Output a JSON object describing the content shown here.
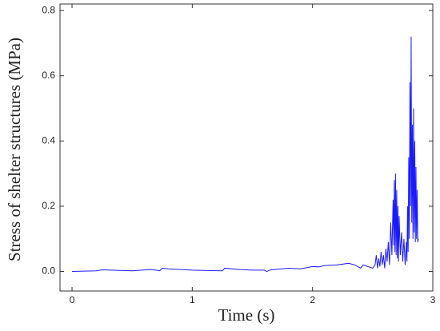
{
  "chart_data": {
    "type": "line",
    "x_label": "Time (s)",
    "y_label": "Stress of shelter structures (MPa)",
    "color": "#1a1aff",
    "xlim": [
      -0.1,
      3.0
    ],
    "ylim": [
      -0.06,
      0.82
    ],
    "xticks": [
      0,
      1,
      2,
      3
    ],
    "yticks": [
      {
        "value": 0,
        "label": "0.0"
      },
      {
        "value": 0.2,
        "label": "0.2"
      },
      {
        "value": 0.4,
        "label": "0.4"
      },
      {
        "value": 0.6,
        "label": "0.6"
      },
      {
        "value": 0.8,
        "label": "0.8"
      }
    ],
    "x": [
      0,
      0.2,
      0.25,
      0.4,
      0.5,
      0.65,
      0.7,
      0.73,
      0.75,
      0.8,
      1.0,
      1.25,
      1.27,
      1.4,
      1.5,
      1.6,
      1.62,
      1.65,
      1.8,
      1.9,
      2.0,
      2.05,
      2.1,
      2.2,
      2.3,
      2.35,
      2.4,
      2.42,
      2.5,
      2.52,
      2.53,
      2.54,
      2.55,
      2.56,
      2.57,
      2.58,
      2.59,
      2.6,
      2.61,
      2.62,
      2.63,
      2.64,
      2.65,
      2.66,
      2.67,
      2.675,
      2.68,
      2.685,
      2.69,
      2.695,
      2.7,
      2.705,
      2.71,
      2.715,
      2.72,
      2.73,
      2.74,
      2.75,
      2.76,
      2.77,
      2.78,
      2.785,
      2.79,
      2.795,
      2.8,
      2.805,
      2.81,
      2.815,
      2.82,
      2.825,
      2.83,
      2.835,
      2.84,
      2.845,
      2.85,
      2.855,
      2.86,
      2.865,
      2.87,
      2.875,
      2.88
    ],
    "values": [
      0,
      0.002,
      0.005,
      0.003,
      0.002,
      0.006,
      0.004,
      0.002,
      0.01,
      0.008,
      0.004,
      0.002,
      0.01,
      0.006,
      0.004,
      0.004,
      0.0,
      0.005,
      0.01,
      0.008,
      0.015,
      0.014,
      0.018,
      0.02,
      0.025,
      0.02,
      0.01,
      0.02,
      0.01,
      0.02,
      0.05,
      0.01,
      0.04,
      0.015,
      0.06,
      0.02,
      0.05,
      0.01,
      0.07,
      0.03,
      0.09,
      0.02,
      0.15,
      0.05,
      0.22,
      0.08,
      0.28,
      0.06,
      0.3,
      0.05,
      0.25,
      0.04,
      0.2,
      0.03,
      0.17,
      0.05,
      0.12,
      0.03,
      0.1,
      0.02,
      0.09,
      0.03,
      0.2,
      0.06,
      0.35,
      0.1,
      0.58,
      0.2,
      0.72,
      0.15,
      0.45,
      0.1,
      0.5,
      0.12,
      0.4,
      0.09,
      0.32,
      0.1,
      0.25,
      0.09,
      0.1
    ]
  }
}
